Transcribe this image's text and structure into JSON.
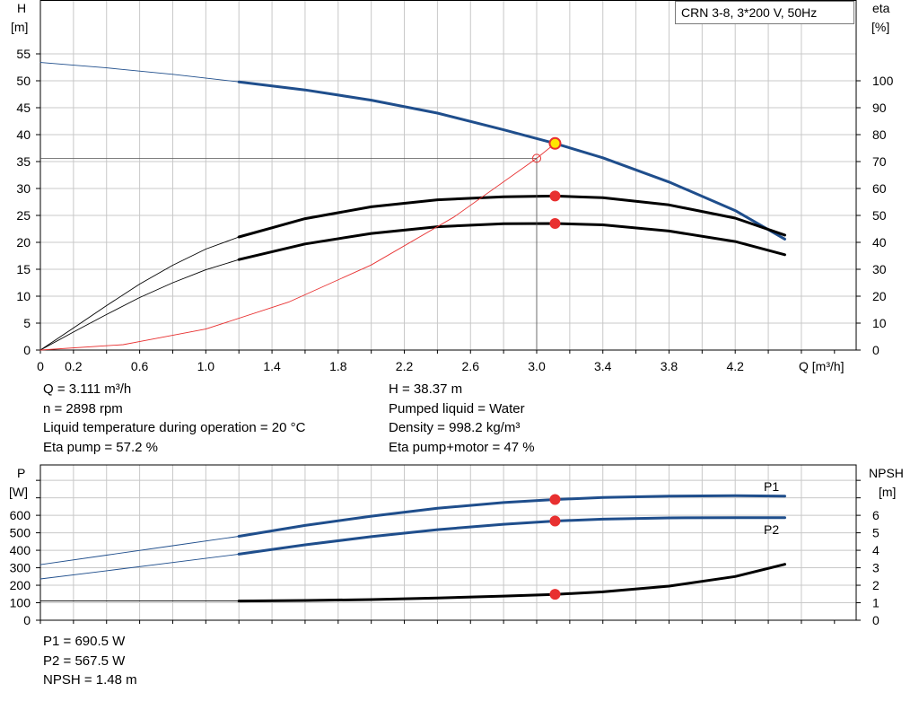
{
  "legend_title": "CRN 3-8, 3*200 V, 50Hz",
  "info_top_left": [
    "Q = 3.111 m³/h",
    "n = 2898 rpm",
    "Liquid temperature during operation = 20 °C",
    "Eta pump = 57.2 %"
  ],
  "info_top_right": [
    "H = 38.37 m",
    "Pumped liquid = Water",
    "Density = 998.2 kg/m³",
    "Eta pump+motor = 47 %"
  ],
  "info_bottom": [
    "P1 = 690.5 W",
    "P2 = 567.5 W",
    "NPSH = 1.48 m"
  ],
  "colors": {
    "blue": "#1f4e8c",
    "black": "#000000",
    "red": "#e83030",
    "op_yellow": "#ffe600",
    "grid": "#c8c8c8"
  },
  "chart_data": [
    {
      "type": "line",
      "title": "",
      "xlabel": "Q [m³/h]",
      "ylabel_left": "H",
      "ylabel_left_unit": "[m]",
      "ylabel_right": "eta",
      "ylabel_right_unit": "[%]",
      "xlim": [
        0,
        4.8
      ],
      "ylim_left": [
        0,
        55
      ],
      "ylim_right": [
        0,
        110
      ],
      "x_ticks": [
        "0",
        "0.2",
        "0.6",
        "1.0",
        "1.4",
        "1.8",
        "2.2",
        "2.6",
        "3.0",
        "3.4",
        "3.8",
        "4.2"
      ],
      "x_tick_values": [
        0,
        0.2,
        0.6,
        1.0,
        1.4,
        1.8,
        2.2,
        2.6,
        3.0,
        3.4,
        3.8,
        4.2
      ],
      "y_left_ticks": [
        0,
        5,
        10,
        15,
        20,
        25,
        30,
        35,
        40,
        45,
        50,
        55
      ],
      "y_right_ticks": [
        0,
        10,
        20,
        30,
        40,
        50,
        60,
        70,
        80,
        90,
        100
      ],
      "grid": true,
      "series": [
        {
          "axis": "left",
          "color": "#1f4e8c",
          "thin": {
            "x": [
              0,
              0.4,
              0.8,
              1.2
            ],
            "y": [
              53.4,
              52.4,
              51.2,
              49.8
            ]
          },
          "thick": {
            "x": [
              1.2,
              1.6,
              2.0,
              2.4,
              2.8,
              3.111,
              3.4,
              3.8,
              4.2,
              4.5
            ],
            "y": [
              49.8,
              48.3,
              46.4,
              44.0,
              40.9,
              38.37,
              35.7,
              31.2,
              25.9,
              20.6
            ]
          }
        },
        {
          "axis": "right",
          "color": "#000000",
          "thin": {
            "x": [
              0,
              0.2,
              0.4,
              0.6,
              0.8,
              1.0,
              1.2
            ],
            "y": [
              0,
              8.2,
              16.5,
              24.5,
              31.5,
              37.5,
              42.0
            ]
          },
          "thick": {
            "x": [
              1.2,
              1.6,
              2.0,
              2.4,
              2.8,
              3.111,
              3.4,
              3.8,
              4.2,
              4.5
            ],
            "y": [
              42.0,
              48.8,
              53.2,
              55.8,
              56.9,
              57.2,
              56.6,
              53.9,
              49.0,
              42.7
            ]
          }
        },
        {
          "axis": "right",
          "color": "#000000",
          "thin": {
            "x": [
              0,
              0.2,
              0.4,
              0.6,
              0.8,
              1.0,
              1.2
            ],
            "y": [
              0,
              6.7,
              13.2,
              19.5,
              25.0,
              29.8,
              33.6
            ]
          },
          "thick": {
            "x": [
              1.2,
              1.6,
              2.0,
              2.4,
              2.8,
              3.111,
              3.4,
              3.8,
              4.2,
              4.5
            ],
            "y": [
              33.6,
              39.4,
              43.3,
              45.8,
              46.9,
              47.0,
              46.5,
              44.2,
              40.3,
              35.4
            ]
          }
        },
        {
          "axis": "left",
          "color": "#e83030",
          "thin": {
            "x": [
              0,
              0.5,
              1.0,
              1.5,
              2.0,
              2.5,
              3.0,
              3.111
            ],
            "y": [
              0,
              1.0,
              3.9,
              8.9,
              15.8,
              24.7,
              35.6,
              38.37
            ]
          },
          "thick": {
            "x": [],
            "y": []
          }
        }
      ],
      "reference_point": {
        "x": 3.0,
        "y": 35.6
      },
      "operating_points": [
        {
          "x": 3.111,
          "y": 38.37,
          "axis": "left"
        },
        {
          "x": 3.111,
          "y": 57.2,
          "axis": "right"
        },
        {
          "x": 3.111,
          "y": 47.0,
          "axis": "right"
        }
      ]
    },
    {
      "type": "line",
      "title": "",
      "xlabel": "",
      "ylabel_left": "P",
      "ylabel_left_unit": "[W]",
      "ylabel_right": "NPSH",
      "ylabel_right_unit": "[m]",
      "xlim": [
        0,
        4.8
      ],
      "ylim_left": [
        0,
        800
      ],
      "ylim_right": [
        0,
        8
      ],
      "y_left_ticks": [
        0,
        100,
        200,
        300,
        400,
        500,
        600
      ],
      "y_right_ticks": [
        0,
        1,
        2,
        3,
        4,
        5,
        6
      ],
      "grid": true,
      "series": [
        {
          "name": "P1",
          "axis": "left",
          "color": "#1f4e8c",
          "thin": {
            "x": [
              0,
              0.4,
              0.8,
              1.2
            ],
            "y": [
              318,
              372,
              426,
              480
            ]
          },
          "thick": {
            "x": [
              1.2,
              1.6,
              2.0,
              2.4,
              2.8,
              3.111,
              3.4,
              3.8,
              4.2,
              4.5
            ],
            "y": [
              480,
              542,
              595,
              640,
              673,
              690.5,
              702,
              710,
              712,
              710
            ]
          }
        },
        {
          "name": "P2",
          "axis": "left",
          "color": "#1f4e8c",
          "thin": {
            "x": [
              0,
              0.4,
              0.8,
              1.2
            ],
            "y": [
              236,
              283,
              330,
              378
            ]
          },
          "thick": {
            "x": [
              1.2,
              1.6,
              2.0,
              2.4,
              2.8,
              3.111,
              3.4,
              3.8,
              4.2,
              4.5
            ],
            "y": [
              378,
              431,
              478,
              518,
              549,
              567.5,
              578,
              585,
              587,
              586
            ]
          }
        },
        {
          "axis": "right",
          "color": "#000000",
          "thin": {
            "x": [
              0,
              0.6,
              1.2
            ],
            "y": [
              1.1,
              1.1,
              1.1
            ]
          },
          "thick": {
            "x": [
              1.2,
              1.6,
              2.0,
              2.4,
              2.8,
              3.111,
              3.4,
              3.8,
              4.2,
              4.5
            ],
            "y": [
              1.1,
              1.13,
              1.18,
              1.27,
              1.38,
              1.48,
              1.62,
              1.95,
              2.5,
              3.2
            ]
          }
        }
      ],
      "operating_points": [
        {
          "x": 3.111,
          "y": 690.5,
          "axis": "left"
        },
        {
          "x": 3.111,
          "y": 567.5,
          "axis": "left"
        },
        {
          "x": 3.111,
          "y": 1.48,
          "axis": "right"
        }
      ]
    }
  ]
}
